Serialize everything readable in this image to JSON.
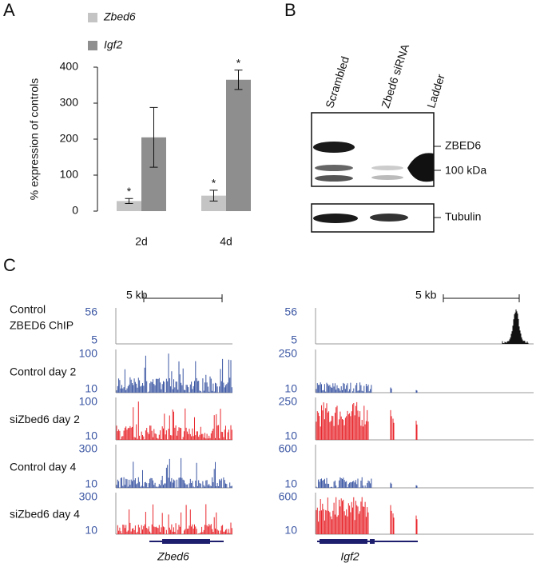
{
  "chart_data": {
    "type": "bar",
    "panel": "A",
    "ylabel": "% expression of controls",
    "categories": [
      "2d",
      "4d"
    ],
    "series": [
      {
        "name": "Zbed6",
        "color": "#c4c4c4",
        "values": [
          28,
          43
        ],
        "errors": [
          7,
          15
        ],
        "annotations": [
          "*",
          "*"
        ]
      },
      {
        "name": "Igf2",
        "color": "#8e8e8e",
        "values": [
          205,
          365
        ],
        "errors": [
          83,
          27
        ],
        "annotations": [
          null,
          "*"
        ]
      }
    ],
    "ylim": [
      0,
      400
    ],
    "yticks": [
      0,
      100,
      200,
      300,
      400
    ]
  },
  "blot": {
    "panel": "B",
    "lanes": [
      "Scrambled",
      "Zbed6 siRNA",
      "Ladder"
    ],
    "bands": [
      "ZBED6",
      "100 kDa"
    ],
    "loading": "Tubulin"
  },
  "tracks": {
    "panel": "C",
    "scale_bars": [
      "5 kb",
      "5 kb"
    ],
    "genes": [
      "Zbed6",
      "Igf2"
    ],
    "rows": [
      {
        "label": [
          "Control",
          "ZBED6 ChIP"
        ],
        "left": [
          56,
          5
        ],
        "right": [
          56,
          5
        ]
      },
      {
        "label": [
          "Control  day 2"
        ],
        "left": [
          100,
          10
        ],
        "right": [
          250,
          10
        ]
      },
      {
        "label": [
          "siZbed6 day 2"
        ],
        "left": [
          100,
          10
        ],
        "right": [
          250,
          10
        ]
      },
      {
        "label": [
          "Control day 4"
        ],
        "left": [
          300,
          10
        ],
        "right": [
          600,
          10
        ]
      },
      {
        "label": [
          "siZbed6 day 4"
        ],
        "left": [
          300,
          10
        ],
        "right": [
          600,
          10
        ]
      }
    ]
  }
}
